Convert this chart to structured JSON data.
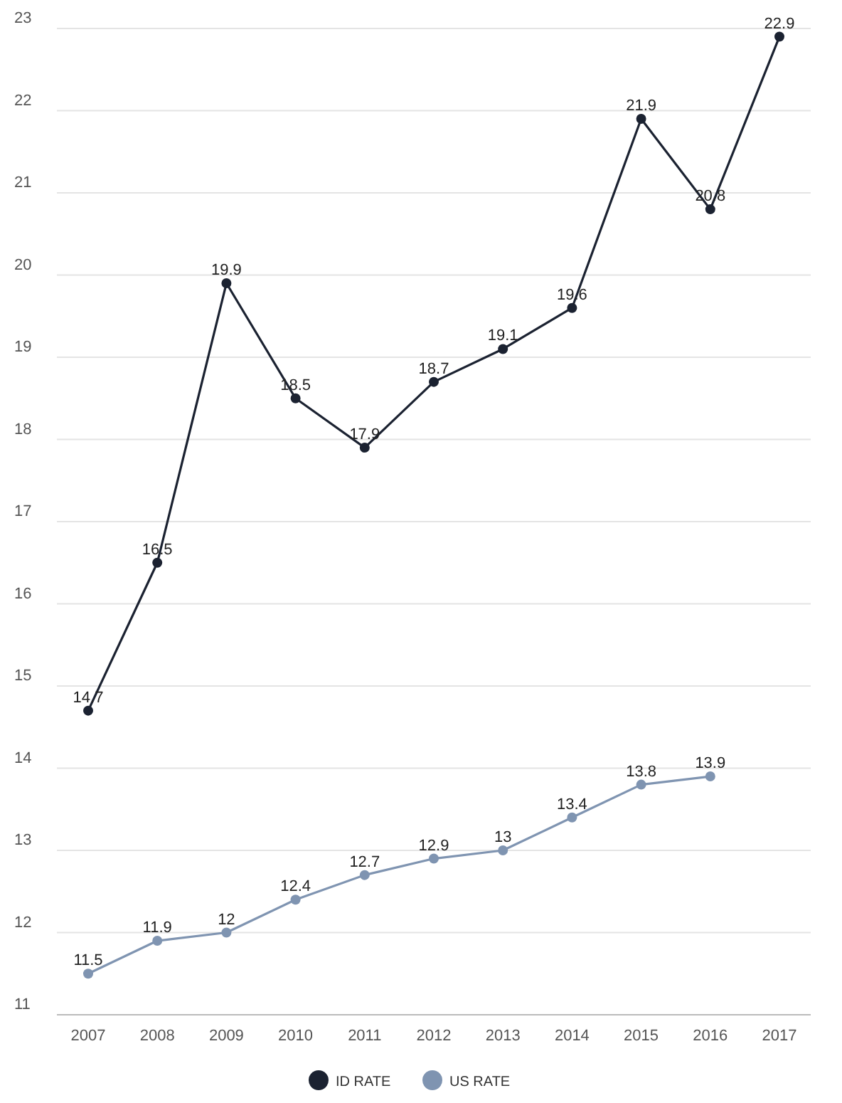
{
  "chart_data": {
    "type": "line",
    "categories": [
      "2007",
      "2008",
      "2009",
      "2010",
      "2011",
      "2012",
      "2013",
      "2014",
      "2015",
      "2016",
      "2017"
    ],
    "series": [
      {
        "name": "ID RATE",
        "color": "#1b2231",
        "values": [
          14.7,
          16.5,
          19.9,
          18.5,
          17.9,
          18.7,
          19.1,
          19.6,
          21.9,
          20.8,
          22.9
        ]
      },
      {
        "name": "US RATE",
        "color": "#7f94b1",
        "values": [
          11.5,
          11.9,
          12,
          12.4,
          12.7,
          12.9,
          13,
          13.4,
          13.8,
          13.9,
          null
        ]
      }
    ],
    "ylim": [
      11,
      23
    ],
    "yticks": [
      11,
      12,
      13,
      14,
      15,
      16,
      17,
      18,
      19,
      20,
      21,
      22,
      23
    ],
    "grid": "y",
    "legend": "bottom",
    "marker": "circle",
    "line_style": "solid",
    "data_labels": true
  }
}
